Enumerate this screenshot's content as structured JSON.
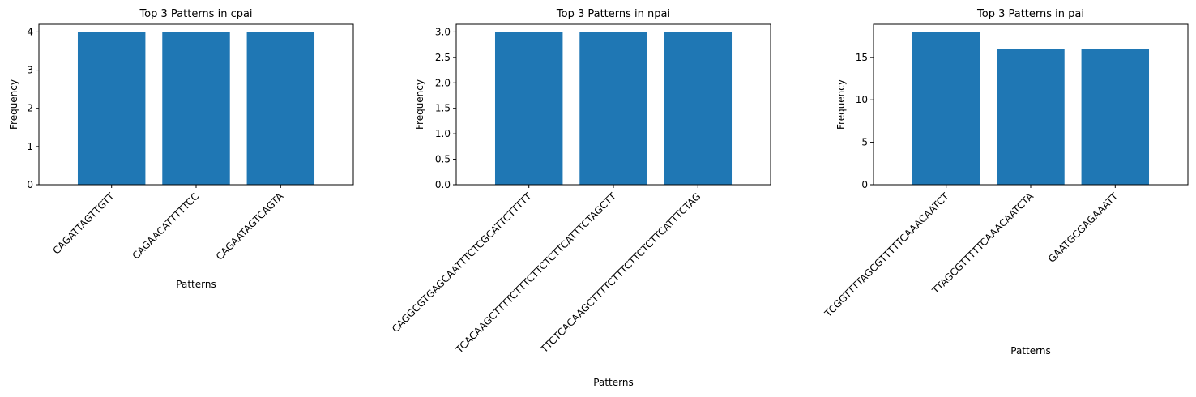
{
  "figure": {
    "background": "#ffffff",
    "bar_color": "#1f77b4"
  },
  "chart_data": [
    {
      "type": "bar",
      "title": "Top 3 Patterns in cpai",
      "xlabel": "Patterns",
      "ylabel": "Frequency",
      "categories": [
        "CAGATTAGTTGTT",
        "CAGAACATTTTTCC",
        "CAGAATAGTCAGTA"
      ],
      "values": [
        4,
        4,
        4
      ],
      "ylim": [
        0,
        4.2
      ],
      "yticks": [
        0,
        1,
        2,
        3,
        4
      ],
      "ytick_labels": [
        "0",
        "1",
        "2",
        "3",
        "4"
      ],
      "grid": false,
      "color": "#1f77b4"
    },
    {
      "type": "bar",
      "title": "Top 3 Patterns in npai",
      "xlabel": "Patterns",
      "ylabel": "Frequency",
      "categories": [
        "CAGGCGTGAGCAATTTCTCGCATTCTTTTT",
        "TCACAAGCTTTTCTTTCTTCTCTTCATTTCTAGCTT",
        "TTCTCACAAGCTTTTCTTTCTTCTCTTCATTTCTAG"
      ],
      "values": [
        3,
        3,
        3
      ],
      "ylim": [
        0,
        3.15
      ],
      "yticks": [
        0,
        0.5,
        1,
        1.5,
        2,
        2.5,
        3
      ],
      "ytick_labels": [
        "0.0",
        "0.5",
        "1.0",
        "1.5",
        "2.0",
        "2.5",
        "3.0"
      ],
      "grid": false,
      "color": "#1f77b4"
    },
    {
      "type": "bar",
      "title": "Top 3 Patterns in pai",
      "xlabel": "Patterns",
      "ylabel": "Frequency",
      "categories": [
        "TCGGTTTTAGCGTTTTTCAAACAATCT",
        "TTAGCGTTTTTCAAACAATCTA",
        "GAATGCGAGAAATT"
      ],
      "values": [
        18,
        16,
        16
      ],
      "ylim": [
        0,
        18.9
      ],
      "yticks": [
        0,
        5,
        10,
        15
      ],
      "ytick_labels": [
        "0",
        "5",
        "10",
        "15"
      ],
      "grid": false,
      "color": "#1f77b4"
    }
  ]
}
